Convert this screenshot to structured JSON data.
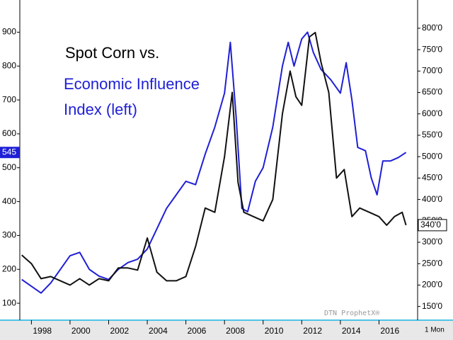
{
  "chart_data": {
    "type": "line",
    "title": "Spot Corn vs.",
    "subtitle": [
      "Economic Influence",
      "Index (left)"
    ],
    "watermark": "DTN ProphetX®",
    "period": "1 Mon",
    "xlim": [
      1997.4,
      2018.0
    ],
    "xticks": [
      1998,
      2000,
      2002,
      2004,
      2006,
      2008,
      2010,
      2012,
      2014,
      2016
    ],
    "ylim": [
      50,
      995
    ],
    "yticks": [
      100,
      200,
      300,
      400,
      500,
      600,
      700,
      800,
      900
    ],
    "y2lim": [
      118,
      866
    ],
    "y2ticks": [
      {
        "value": 150,
        "label": "150'0"
      },
      {
        "value": 200,
        "label": "200'0"
      },
      {
        "value": 250,
        "label": "250'0"
      },
      {
        "value": 300,
        "label": "300'0"
      },
      {
        "value": 350,
        "label": "350'0"
      },
      {
        "value": 400,
        "label": "400'0"
      },
      {
        "value": 450,
        "label": "450'0"
      },
      {
        "value": 500,
        "label": "500'0"
      },
      {
        "value": 550,
        "label": "550'0"
      },
      {
        "value": 600,
        "label": "600'0"
      },
      {
        "value": 650,
        "label": "650'0"
      },
      {
        "value": 700,
        "label": "700'0"
      },
      {
        "value": 750,
        "label": "750'0"
      },
      {
        "value": 800,
        "label": "800'0"
      }
    ],
    "series": [
      {
        "color": "#1f1fd6",
        "axis": "y",
        "x": [
          1997.5,
          1998.0,
          1998.5,
          1999.0,
          1999.5,
          2000.0,
          2000.5,
          2001.0,
          2001.5,
          2002.0,
          2002.5,
          2003.0,
          2003.5,
          2004.0,
          2004.5,
          2005.0,
          2005.5,
          2006.0,
          2006.5,
          2007.0,
          2007.5,
          2008.0,
          2008.3,
          2008.6,
          2008.9,
          2009.2,
          2009.6,
          2010.0,
          2010.5,
          2011.0,
          2011.3,
          2011.6,
          2012.0,
          2012.3,
          2012.6,
          2013.0,
          2013.5,
          2014.0,
          2014.3,
          2014.6,
          2014.9,
          2015.3,
          2015.6,
          2015.9,
          2016.2,
          2016.6,
          2017.0,
          2017.4
        ],
        "values": [
          170,
          150,
          130,
          160,
          200,
          240,
          250,
          200,
          180,
          170,
          200,
          220,
          230,
          260,
          320,
          380,
          420,
          460,
          450,
          540,
          620,
          720,
          870,
          650,
          380,
          370,
          460,
          500,
          620,
          800,
          870,
          800,
          880,
          900,
          840,
          790,
          760,
          720,
          810,
          700,
          560,
          550,
          470,
          420,
          520,
          520,
          530,
          545
        ]
      },
      {
        "color": "#111111",
        "axis": "y2",
        "x": [
          1997.5,
          1998.0,
          1998.5,
          1999.0,
          1999.5,
          2000.0,
          2000.5,
          2001.0,
          2001.5,
          2002.0,
          2002.5,
          2003.0,
          2003.5,
          2004.0,
          2004.5,
          2005.0,
          2005.5,
          2006.0,
          2006.5,
          2007.0,
          2007.5,
          2008.0,
          2008.4,
          2008.7,
          2009.0,
          2009.5,
          2010.0,
          2010.5,
          2011.0,
          2011.4,
          2011.7,
          2012.0,
          2012.4,
          2012.7,
          2013.0,
          2013.4,
          2013.8,
          2014.2,
          2014.6,
          2015.0,
          2015.5,
          2016.0,
          2016.4,
          2016.8,
          2017.2,
          2017.4
        ],
        "values": [
          270,
          250,
          215,
          220,
          210,
          200,
          215,
          200,
          215,
          210,
          240,
          240,
          235,
          310,
          230,
          210,
          210,
          220,
          290,
          380,
          370,
          500,
          650,
          440,
          370,
          360,
          350,
          400,
          600,
          700,
          640,
          620,
          780,
          790,
          720,
          650,
          450,
          470,
          360,
          380,
          370,
          360,
          340,
          360,
          370,
          340
        ],
        "value_labels": [
          null,
          null,
          null,
          null,
          null,
          null,
          null,
          null,
          null,
          null,
          null,
          null,
          null,
          null,
          null,
          null,
          null,
          null,
          null,
          null,
          null,
          null,
          null,
          null,
          null,
          null,
          null,
          null,
          null,
          null,
          null,
          null,
          null,
          null,
          null,
          null,
          null,
          null,
          null,
          null,
          null,
          null,
          null,
          null,
          null,
          "340'0"
        ]
      }
    ]
  }
}
